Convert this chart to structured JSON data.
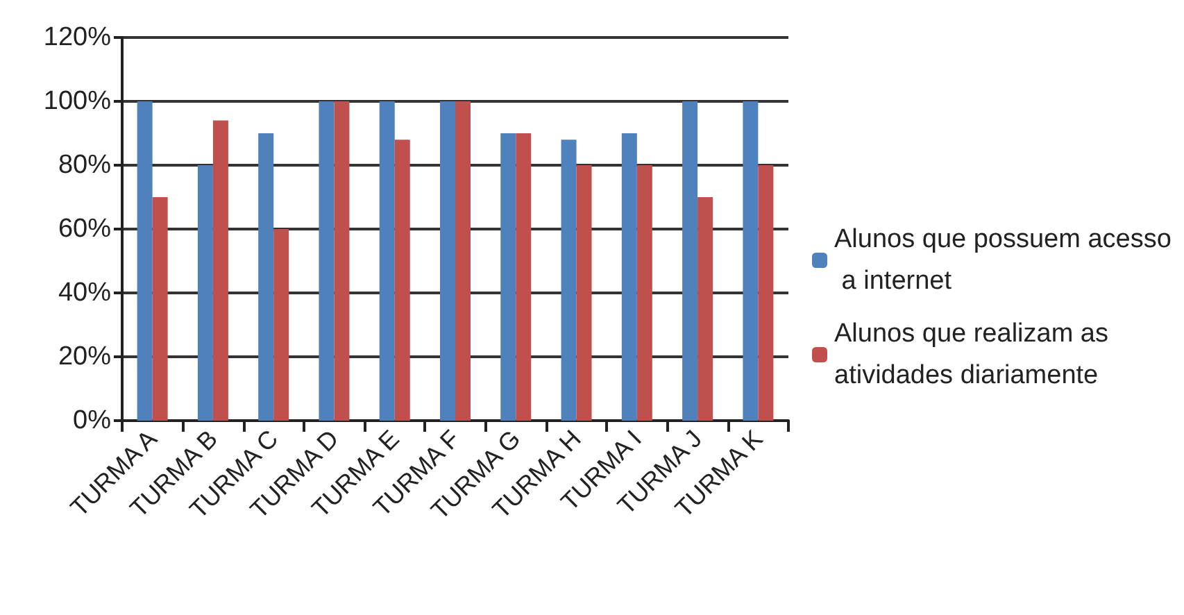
{
  "chart_data": {
    "type": "bar",
    "categories": [
      "TURMA A",
      "TURMA B",
      "TURMA C",
      "TURMA D",
      "TURMA E",
      "TURMA F",
      "TURMA G",
      "TURMA H",
      "TURMA I",
      "TURMA J",
      "TURMA K"
    ],
    "series": [
      {
        "name": "Alunos que possuem acesso a internet",
        "color": "#4f81bd",
        "values": [
          100,
          80,
          90,
          100,
          100,
          100,
          90,
          88,
          90,
          100,
          100
        ]
      },
      {
        "name": "Alunos que realizam as atividades diariamente",
        "color": "#c0504d",
        "values": [
          70,
          94,
          60,
          100,
          88,
          100,
          90,
          80,
          80,
          70,
          80
        ]
      }
    ],
    "ylim": [
      0,
      120
    ],
    "yticks": [
      {
        "value": 0,
        "label": "0%"
      },
      {
        "value": 20,
        "label": "20%"
      },
      {
        "value": 40,
        "label": "40%"
      },
      {
        "value": 60,
        "label": "60%"
      },
      {
        "value": 80,
        "label": "80%"
      },
      {
        "value": 100,
        "label": "100%"
      },
      {
        "value": 120,
        "label": "120%"
      }
    ],
    "grid": "y",
    "legend": "right"
  }
}
